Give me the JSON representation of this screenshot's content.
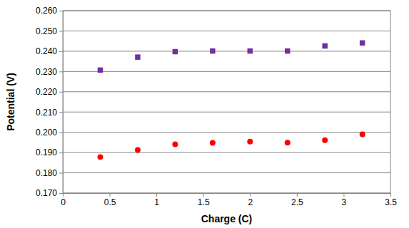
{
  "chart_data": {
    "type": "scatter",
    "x_label": "Charge (C)",
    "y_label": "Potential (V)",
    "x": [
      0.4,
      0.8,
      1.2,
      1.6,
      2.0,
      2.4,
      2.8,
      3.2
    ],
    "series": [
      {
        "color": "#7030a0",
        "marker": "square",
        "values": [
          0.2307,
          0.2371,
          0.2398,
          0.2401,
          0.2401,
          0.2401,
          0.2426,
          0.2441
        ]
      },
      {
        "color": "#ff0000",
        "marker": "circle",
        "values": [
          0.1878,
          0.1913,
          0.1941,
          0.1948,
          0.1954,
          0.1949,
          0.1961,
          0.199
        ]
      }
    ],
    "xlim": [
      0,
      3.5
    ],
    "xticks": [
      0,
      0.5,
      1,
      1.5,
      2,
      2.5,
      3,
      3.5
    ],
    "ylim": [
      0.17,
      0.26
    ],
    "yticks": [
      {
        "value": 0.17,
        "label": "0.170"
      },
      {
        "value": 0.18,
        "label": "0.180"
      },
      {
        "value": 0.19,
        "label": "0.190"
      },
      {
        "value": 0.2,
        "label": "0.200"
      },
      {
        "value": 0.21,
        "label": "0.210"
      },
      {
        "value": 0.22,
        "label": "0.220"
      },
      {
        "value": 0.23,
        "label": "0.230"
      },
      {
        "value": 0.24,
        "label": "0.240"
      },
      {
        "value": 0.25,
        "label": "0.250"
      },
      {
        "value": 0.26,
        "label": "0.260"
      }
    ],
    "grid": true
  }
}
